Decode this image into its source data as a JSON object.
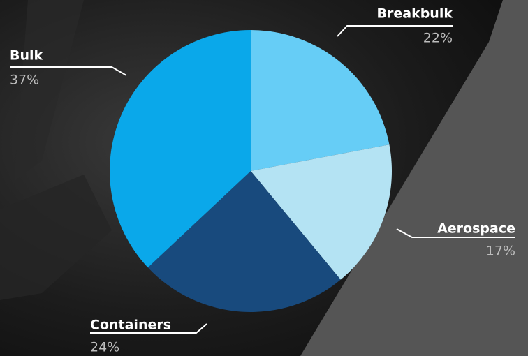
{
  "chart_data": {
    "type": "pie",
    "categories": [
      "Breakbulk",
      "Aerospace",
      "Containers",
      "Bulk"
    ],
    "values": [
      22,
      17,
      24,
      37
    ],
    "value_labels": [
      "22%",
      "17%",
      "24%",
      "37%"
    ],
    "colors": [
      "#66cdf6",
      "#b4e3f3",
      "#184a7d",
      "#0aa8ea"
    ]
  }
}
